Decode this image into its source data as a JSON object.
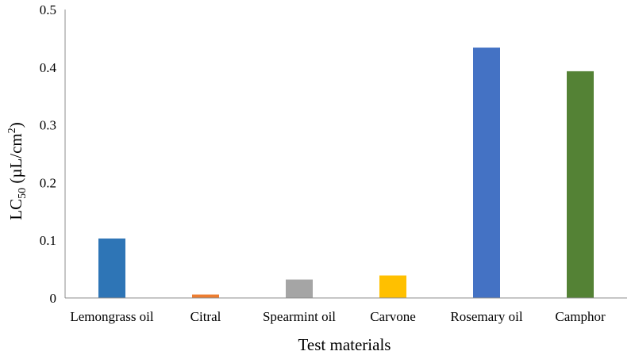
{
  "chart_data": {
    "type": "bar",
    "title": "",
    "xlabel": "Test materials",
    "ylabel": {
      "base": "LC",
      "sub": "50",
      "unit_open": " (µL/cm",
      "sup": "2",
      "unit_close": ")"
    },
    "ylim": [
      0,
      0.5
    ],
    "yticks": [
      "0",
      "0.1",
      "0.2",
      "0.3",
      "0.4",
      "0.5"
    ],
    "grid": false,
    "legend": "none",
    "categories": [
      "Lemongrass oil",
      "Citral",
      "Spearmint oil",
      "Carvone",
      "Rosemary oil",
      "Camphor"
    ],
    "values": [
      0.103,
      0.006,
      0.032,
      0.039,
      0.434,
      0.393
    ],
    "colors": [
      "#2e75b6",
      "#ed7d31",
      "#a5a5a5",
      "#ffc000",
      "#4472c4",
      "#548235"
    ]
  }
}
